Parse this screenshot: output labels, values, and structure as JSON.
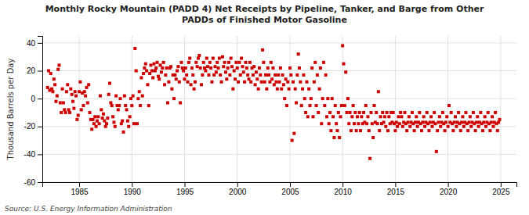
{
  "chart_data": {
    "type": "scatter",
    "title": "Monthly Rocky Mountain (PADD 4) Net Receipts by Pipeline, Tanker, and Barge from Other\nPADDs of Finished Motor Gasoline",
    "ylabel": "Thousand Barrels per Day",
    "annotations": [
      "Source: U.S. Energy Information Administration"
    ],
    "color": "#cc0000",
    "marker": "square",
    "grid": true,
    "ylim": [
      -60,
      45
    ],
    "xlim": [
      1981.5,
      2026.5
    ],
    "yticks": [
      -60,
      -40,
      -20,
      0,
      20,
      40
    ],
    "xticks": [
      1985,
      1990,
      1995,
      2000,
      2005,
      2010,
      2015,
      2020,
      2025
    ],
    "x": [
      1982.0,
      1982.1,
      1982.2,
      1982.3,
      1982.4,
      1982.5,
      1982.6,
      1982.7,
      1982.8,
      1982.9,
      1983.0,
      1983.1,
      1983.2,
      1983.3,
      1983.4,
      1983.5,
      1983.6,
      1983.7,
      1983.8,
      1983.9,
      1984.0,
      1984.1,
      1984.2,
      1984.3,
      1984.4,
      1984.5,
      1984.6,
      1984.7,
      1984.8,
      1984.9,
      1985.0,
      1985.1,
      1985.2,
      1985.3,
      1985.4,
      1985.5,
      1985.6,
      1985.7,
      1985.8,
      1985.9,
      1986.0,
      1986.1,
      1986.2,
      1986.3,
      1986.4,
      1986.5,
      1986.6,
      1986.7,
      1986.8,
      1986.9,
      1987.0,
      1987.1,
      1987.2,
      1987.3,
      1987.4,
      1987.5,
      1987.6,
      1987.7,
      1987.8,
      1987.9,
      1988.0,
      1988.1,
      1988.2,
      1988.3,
      1988.4,
      1988.5,
      1988.6,
      1988.7,
      1988.8,
      1988.9,
      1989.0,
      1989.1,
      1989.2,
      1989.3,
      1989.4,
      1989.5,
      1989.6,
      1989.7,
      1989.8,
      1989.9,
      1990.0,
      1990.1,
      1990.2,
      1990.3,
      1990.4,
      1990.5,
      1990.6,
      1990.7,
      1990.8,
      1990.9,
      1991.0,
      1991.1,
      1991.2,
      1991.3,
      1991.4,
      1991.5,
      1991.6,
      1991.7,
      1991.8,
      1991.9,
      1992.0,
      1992.1,
      1992.2,
      1992.3,
      1992.4,
      1992.5,
      1992.6,
      1992.7,
      1992.8,
      1992.9,
      1993.0,
      1993.1,
      1993.2,
      1993.3,
      1993.4,
      1993.5,
      1993.6,
      1993.7,
      1993.8,
      1993.9,
      1994.0,
      1994.1,
      1994.2,
      1994.3,
      1994.4,
      1994.5,
      1994.6,
      1994.7,
      1994.8,
      1994.9,
      1995.0,
      1995.1,
      1995.2,
      1995.3,
      1995.4,
      1995.5,
      1995.6,
      1995.7,
      1995.8,
      1995.9,
      1996.0,
      1996.1,
      1996.2,
      1996.3,
      1996.4,
      1996.5,
      1996.6,
      1996.7,
      1996.8,
      1996.9,
      1997.0,
      1997.1,
      1997.2,
      1997.3,
      1997.4,
      1997.5,
      1997.6,
      1997.7,
      1997.8,
      1997.9,
      1998.0,
      1998.1,
      1998.2,
      1998.3,
      1998.4,
      1998.5,
      1998.6,
      1998.7,
      1998.8,
      1998.9,
      1999.0,
      1999.1,
      1999.2,
      1999.3,
      1999.4,
      1999.5,
      1999.6,
      1999.7,
      1999.8,
      1999.9,
      2000.0,
      2000.1,
      2000.2,
      2000.3,
      2000.4,
      2000.5,
      2000.6,
      2000.7,
      2000.8,
      2000.9,
      2001.0,
      2001.1,
      2001.2,
      2001.3,
      2001.4,
      2001.5,
      2001.6,
      2001.7,
      2001.8,
      2001.9,
      2002.0,
      2002.1,
      2002.2,
      2002.3,
      2002.4,
      2002.5,
      2002.6,
      2002.7,
      2002.8,
      2002.9,
      2003.0,
      2003.1,
      2003.2,
      2003.3,
      2003.4,
      2003.5,
      2003.6,
      2003.7,
      2003.8,
      2003.9,
      2004.0,
      2004.1,
      2004.2,
      2004.3,
      2004.4,
      2004.5,
      2004.6,
      2004.7,
      2004.8,
      2004.9,
      2005.0,
      2005.1,
      2005.2,
      2005.3,
      2005.4,
      2005.5,
      2005.6,
      2005.7,
      2005.8,
      2005.9,
      2006.0,
      2006.1,
      2006.2,
      2006.3,
      2006.4,
      2006.5,
      2006.6,
      2006.7,
      2006.8,
      2006.9,
      2007.0,
      2007.1,
      2007.2,
      2007.3,
      2007.4,
      2007.5,
      2007.6,
      2007.7,
      2007.8,
      2007.9,
      2008.0,
      2008.1,
      2008.2,
      2008.3,
      2008.4,
      2008.5,
      2008.6,
      2008.7,
      2008.8,
      2008.9,
      2009.0,
      2009.1,
      2009.2,
      2009.3,
      2009.4,
      2009.5,
      2009.6,
      2009.7,
      2009.8,
      2009.9,
      2010.0,
      2010.1,
      2010.2,
      2010.3,
      2010.4,
      2010.5,
      2010.6,
      2010.7,
      2010.8,
      2010.9,
      2011.0,
      2011.1,
      2011.2,
      2011.3,
      2011.4,
      2011.5,
      2011.6,
      2011.7,
      2011.8,
      2011.9,
      2012.0,
      2012.1,
      2012.2,
      2012.3,
      2012.4,
      2012.5,
      2012.6,
      2012.7,
      2012.8,
      2012.9,
      2013.0,
      2013.1,
      2013.2,
      2013.3,
      2013.4,
      2013.5,
      2013.6,
      2013.7,
      2013.8,
      2013.9,
      2014.0,
      2014.1,
      2014.2,
      2014.3,
      2014.4,
      2014.5,
      2014.6,
      2014.7,
      2014.8,
      2014.9,
      2015.0,
      2015.1,
      2015.2,
      2015.3,
      2015.4,
      2015.5,
      2015.6,
      2015.7,
      2015.8,
      2015.9,
      2016.0,
      2016.1,
      2016.2,
      2016.3,
      2016.4,
      2016.5,
      2016.6,
      2016.7,
      2016.8,
      2016.9,
      2017.0,
      2017.1,
      2017.2,
      2017.3,
      2017.4,
      2017.5,
      2017.6,
      2017.7,
      2017.8,
      2017.9,
      2018.0,
      2018.1,
      2018.2,
      2018.3,
      2018.4,
      2018.5,
      2018.6,
      2018.7,
      2018.8,
      2018.9,
      2019.0,
      2019.1,
      2019.2,
      2019.3,
      2019.4,
      2019.5,
      2019.6,
      2019.7,
      2019.8,
      2019.9,
      2020.0,
      2020.1,
      2020.2,
      2020.3,
      2020.4,
      2020.5,
      2020.6,
      2020.7,
      2020.8,
      2020.9,
      2021.0,
      2021.1,
      2021.2,
      2021.3,
      2021.4,
      2021.5,
      2021.6,
      2021.7,
      2021.8,
      2021.9,
      2022.0,
      2022.1,
      2022.2,
      2022.3,
      2022.4,
      2022.5,
      2022.6,
      2022.7,
      2022.8,
      2022.9,
      2023.0,
      2023.1,
      2023.2,
      2023.3,
      2023.4,
      2023.5,
      2023.6,
      2023.7,
      2023.8,
      2023.9,
      2024.0,
      2024.1,
      2024.2,
      2024.3,
      2024.4,
      2024.5,
      2024.6,
      2024.7,
      2024.8,
      2024.9
    ],
    "values": [
      8,
      20,
      6,
      18,
      7,
      5,
      14,
      10,
      -2,
      2,
      21,
      24,
      -3,
      -10,
      7,
      -3,
      -8,
      -10,
      5,
      10,
      -8,
      -10,
      7,
      3,
      -2,
      -7,
      5,
      2,
      -15,
      -12,
      5,
      12,
      -8,
      4,
      -5,
      5,
      2,
      8,
      -3,
      10,
      -10,
      -15,
      -22,
      -15,
      -18,
      -13,
      -20,
      -16,
      -13,
      -18,
      2,
      -8,
      -14,
      -11,
      -16,
      -20,
      -18,
      -14,
      3,
      11,
      -3,
      -5,
      -13,
      -17,
      -20,
      2,
      -5,
      -8,
      -5,
      0,
      -18,
      -16,
      -24,
      2,
      -5,
      -8,
      -16,
      -20,
      -13,
      0,
      -5,
      2,
      -18,
      36,
      20,
      -18,
      0,
      5,
      -5,
      15,
      2,
      18,
      22,
      25,
      20,
      10,
      -5,
      18,
      24,
      20,
      15,
      25,
      20,
      22,
      26,
      16,
      14,
      24,
      19,
      22,
      26,
      10,
      17,
      22,
      -3,
      12,
      22,
      23,
      7,
      17,
      0,
      17,
      14,
      20,
      23,
      12,
      -3,
      26,
      22,
      20,
      14,
      22,
      17,
      12,
      26,
      29,
      10,
      22,
      17,
      7,
      12,
      26,
      23,
      29,
      31,
      22,
      10,
      17,
      26,
      22,
      20,
      29,
      23,
      17,
      26,
      22,
      12,
      29,
      17,
      23,
      19,
      26,
      22,
      29,
      17,
      12,
      30,
      23,
      26,
      19,
      14,
      22,
      26,
      17,
      29,
      23,
      7,
      20,
      14,
      26,
      22,
      12,
      26,
      17,
      29,
      23,
      19,
      12,
      26,
      22,
      17,
      14,
      26,
      12,
      22,
      17,
      23,
      10,
      19,
      14,
      7,
      22,
      17,
      12,
      35,
      26,
      12,
      17,
      7,
      22,
      17,
      12,
      26,
      14,
      22,
      10,
      17,
      12,
      7,
      17,
      12,
      22,
      7,
      17,
      10,
      0,
      14,
      -5,
      12,
      7,
      22,
      17,
      -30,
      12,
      -25,
      7,
      -3,
      17,
      32,
      22,
      12,
      -5,
      7,
      17,
      0,
      -10,
      12,
      -13,
      7,
      -5,
      0,
      22,
      -13,
      12,
      26,
      -5,
      17,
      -10,
      7,
      22,
      -18,
      0,
      26,
      -5,
      17,
      -13,
      0,
      -18,
      -10,
      -23,
      0,
      -13,
      -28,
      -5,
      -18,
      -23,
      -10,
      -28,
      -13,
      -5,
      38,
      25,
      -5,
      19,
      -10,
      0,
      -18,
      -10,
      -23,
      -13,
      -5,
      -18,
      -10,
      -23,
      -13,
      -18,
      -10,
      -23,
      -13,
      -18,
      -10,
      -17,
      -5,
      -18,
      -13,
      -23,
      -43,
      -10,
      -18,
      -28,
      -5,
      -17,
      -10,
      -18,
      5,
      -23,
      -13,
      -18,
      -10,
      -17,
      -13,
      -20,
      -10,
      -23,
      -13,
      -18,
      -10,
      -17,
      -10,
      -18,
      -23,
      -17,
      -20,
      -13,
      -18,
      -10,
      -13,
      -20,
      -17,
      -10,
      -18,
      -23,
      -17,
      -13,
      -20,
      -17,
      -10,
      -18,
      -23,
      -17,
      -13,
      -20,
      -17,
      -10,
      -18,
      -23,
      -17,
      -13,
      -20,
      -17,
      -10,
      -18,
      -23,
      -17,
      -13,
      -20,
      -17,
      -10,
      -18,
      -38,
      -23,
      -17,
      -13,
      -20,
      -17,
      -10,
      -18,
      -23,
      -17,
      -13,
      -20,
      -5,
      -17,
      -10,
      -18,
      -23,
      -17,
      -13,
      -20,
      -17,
      -10,
      -18,
      -23,
      -17,
      -13,
      -20,
      -17,
      -10,
      -18,
      -23,
      -17,
      -13,
      -20,
      -17,
      -10,
      -18,
      -23,
      -17,
      -13,
      -20,
      -17,
      -10,
      -18,
      -23,
      -17,
      -13,
      -20,
      -17,
      -10,
      -18,
      -23,
      -17,
      -13,
      -20,
      -17,
      -10,
      -18,
      -23,
      -17,
      -15
    ]
  }
}
